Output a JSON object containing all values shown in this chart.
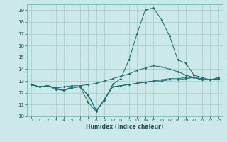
{
  "xlabel": "Humidex (Indice chaleur)",
  "bg_color": "#cce8e8",
  "grid_color": "#aad0d0",
  "line_color": "#1a6e6e",
  "xlim": [
    -0.5,
    23.5
  ],
  "ylim": [
    10,
    19.5
  ],
  "yticks": [
    10,
    11,
    12,
    13,
    14,
    15,
    16,
    17,
    18,
    19
  ],
  "xticks": [
    0,
    1,
    2,
    3,
    4,
    5,
    6,
    7,
    8,
    9,
    10,
    11,
    12,
    13,
    14,
    15,
    16,
    17,
    18,
    19,
    20,
    21,
    22,
    23
  ],
  "line1": [
    [
      0,
      12.7
    ],
    [
      1,
      12.5
    ],
    [
      2,
      12.6
    ],
    [
      3,
      12.4
    ],
    [
      4,
      12.5
    ],
    [
      5,
      12.6
    ],
    [
      6,
      12.6
    ],
    [
      7,
      12.7
    ],
    [
      8,
      12.8
    ],
    [
      9,
      13.0
    ],
    [
      10,
      13.2
    ],
    [
      11,
      13.4
    ],
    [
      12,
      13.6
    ],
    [
      13,
      13.9
    ],
    [
      14,
      14.1
    ],
    [
      15,
      14.3
    ],
    [
      16,
      14.2
    ],
    [
      17,
      14.0
    ],
    [
      18,
      13.8
    ],
    [
      19,
      13.5
    ],
    [
      20,
      13.3
    ],
    [
      21,
      13.2
    ],
    [
      22,
      13.1
    ],
    [
      23,
      13.2
    ]
  ],
  "line2": [
    [
      0,
      12.7
    ],
    [
      1,
      12.5
    ],
    [
      2,
      12.6
    ],
    [
      3,
      12.4
    ],
    [
      4,
      12.2
    ],
    [
      5,
      12.5
    ],
    [
      6,
      12.5
    ],
    [
      7,
      11.8
    ],
    [
      8,
      10.5
    ],
    [
      9,
      11.4
    ],
    [
      10,
      12.5
    ],
    [
      11,
      12.6
    ],
    [
      12,
      12.7
    ],
    [
      13,
      12.8
    ],
    [
      14,
      12.9
    ],
    [
      15,
      13.0
    ],
    [
      16,
      13.1
    ],
    [
      17,
      13.2
    ],
    [
      18,
      13.2
    ],
    [
      19,
      13.3
    ],
    [
      20,
      13.3
    ],
    [
      21,
      13.1
    ],
    [
      22,
      13.1
    ],
    [
      23,
      13.2
    ]
  ],
  "line3": [
    [
      0,
      12.7
    ],
    [
      1,
      12.5
    ],
    [
      2,
      12.6
    ],
    [
      3,
      12.4
    ],
    [
      4,
      12.2
    ],
    [
      5,
      12.5
    ],
    [
      6,
      12.5
    ],
    [
      7,
      11.8
    ],
    [
      8,
      10.5
    ],
    [
      9,
      11.4
    ],
    [
      10,
      12.7
    ],
    [
      11,
      13.2
    ],
    [
      12,
      14.8
    ],
    [
      13,
      17.0
    ],
    [
      14,
      19.0
    ],
    [
      15,
      19.2
    ],
    [
      16,
      18.2
    ],
    [
      17,
      16.8
    ],
    [
      18,
      14.8
    ],
    [
      19,
      14.5
    ],
    [
      20,
      13.5
    ],
    [
      21,
      13.3
    ],
    [
      22,
      13.1
    ],
    [
      23,
      13.3
    ]
  ],
  "line4": [
    [
      0,
      12.7
    ],
    [
      1,
      12.5
    ],
    [
      2,
      12.6
    ],
    [
      3,
      12.3
    ],
    [
      4,
      12.2
    ],
    [
      5,
      12.4
    ],
    [
      6,
      12.5
    ],
    [
      7,
      11.2
    ],
    [
      8,
      10.4
    ],
    [
      9,
      11.5
    ],
    [
      10,
      12.5
    ],
    [
      11,
      12.6
    ],
    [
      12,
      12.7
    ],
    [
      13,
      12.8
    ],
    [
      14,
      12.9
    ],
    [
      15,
      13.0
    ],
    [
      16,
      13.0
    ],
    [
      17,
      13.1
    ],
    [
      18,
      13.1
    ],
    [
      19,
      13.2
    ],
    [
      20,
      13.3
    ],
    [
      21,
      13.1
    ],
    [
      22,
      13.1
    ],
    [
      23,
      13.2
    ]
  ]
}
